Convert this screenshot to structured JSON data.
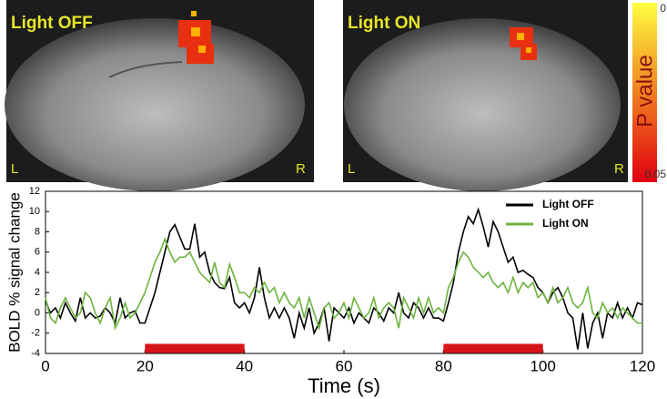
{
  "panels": [
    {
      "title": "Light OFF",
      "left": "L",
      "right": "R"
    },
    {
      "title": "Light ON",
      "left": "L",
      "right": "R"
    }
  ],
  "colorbar": {
    "label": "P value",
    "ticks": [
      0,
      0.05
    ]
  },
  "chart_data": {
    "type": "line",
    "xlabel": "Time (s)",
    "ylabel": "BOLD % signal change",
    "x": [
      0,
      1,
      2,
      3,
      4,
      5,
      6,
      7,
      8,
      9,
      10,
      11,
      12,
      13,
      14,
      15,
      16,
      17,
      18,
      19,
      20,
      21,
      22,
      23,
      24,
      25,
      26,
      27,
      28,
      29,
      30,
      31,
      32,
      33,
      34,
      35,
      36,
      37,
      38,
      39,
      40,
      41,
      42,
      43,
      44,
      45,
      46,
      47,
      48,
      49,
      50,
      51,
      52,
      53,
      54,
      55,
      56,
      57,
      58,
      59,
      60,
      61,
      62,
      63,
      64,
      65,
      66,
      67,
      68,
      69,
      70,
      71,
      72,
      73,
      74,
      75,
      76,
      77,
      78,
      79,
      80,
      81,
      82,
      83,
      84,
      85,
      86,
      87,
      88,
      89,
      90,
      91,
      92,
      93,
      94,
      95,
      96,
      97,
      98,
      99,
      100,
      101,
      102,
      103,
      104,
      105,
      106,
      107,
      108,
      109,
      110,
      111,
      112,
      113,
      114,
      115,
      116,
      117,
      118,
      119,
      120
    ],
    "series": [
      {
        "name": "Light OFF",
        "color": "#000000",
        "values": [
          1.2,
          0,
          0.5,
          -0.5,
          1,
          0,
          -0.8,
          1.5,
          -0.5,
          0,
          -0.5,
          -0.3,
          0.5,
          0,
          -1,
          1.5,
          -0.5,
          0,
          0.2,
          -1,
          -1,
          0.5,
          2,
          4,
          6,
          8,
          8.7,
          7.5,
          6.3,
          6.3,
          8.8,
          5.5,
          6,
          4,
          3,
          2.5,
          2.4,
          3.5,
          1,
          0.5,
          1,
          0,
          1.5,
          4.5,
          1.5,
          -0.5,
          0.5,
          -0.5,
          0.5,
          -0.5,
          -2.5,
          0,
          -1.5,
          0.5,
          -2,
          -1,
          0.5,
          -2.8,
          0.5,
          0,
          -0.5,
          0.5,
          -1,
          0,
          -0.5,
          -1,
          0.5,
          0,
          -0.8,
          0.5,
          0,
          2,
          0,
          -0.5,
          1,
          0.5,
          -0.5,
          0.5,
          -0.5,
          -0.5,
          -0.8,
          1,
          3,
          6,
          8,
          9.5,
          8.8,
          10.2,
          8.5,
          6.5,
          9,
          8,
          6.5,
          5,
          5.5,
          4,
          4.2,
          3.8,
          3.5,
          2.5,
          2,
          1,
          2,
          2.5,
          1.5,
          0,
          -0.5,
          -3.6,
          0,
          -3.5,
          -1,
          0,
          -2.5,
          0,
          -0.5,
          1,
          -0.5,
          0.5,
          -0.5,
          1,
          0.8
        ]
      },
      {
        "name": "Light ON",
        "color": "#6db33f",
        "values": [
          1.5,
          -0.5,
          -1,
          0.5,
          1.5,
          0.5,
          -0.5,
          0,
          2,
          1.5,
          0,
          -1,
          0.5,
          1.5,
          -1.5,
          -0.5,
          1,
          -0.5,
          0,
          1,
          2,
          3.5,
          5,
          6,
          7.3,
          6,
          5,
          5.5,
          5.5,
          6,
          5,
          4,
          3.5,
          3,
          5,
          3,
          2.5,
          4.8,
          3.5,
          2,
          2,
          1.5,
          2.5,
          2,
          3,
          2,
          2.5,
          1,
          2,
          1,
          0.5,
          1.5,
          -0.5,
          1.5,
          0,
          -1.5,
          0.5,
          1,
          -0.5,
          0,
          1,
          -0.5,
          1.5,
          0.5,
          -0.5,
          0,
          1.5,
          -0.5,
          0.5,
          1,
          0.5,
          -1.5,
          1.5,
          0.5,
          -0.5,
          1.5,
          0,
          1.5,
          0,
          0.5,
          0,
          2.5,
          3.5,
          5,
          6,
          5.5,
          4.5,
          4,
          3.5,
          4,
          3,
          2.5,
          3,
          2,
          3.5,
          2,
          3,
          2.5,
          3,
          1.5,
          2,
          1,
          2.5,
          1,
          1.5,
          2.5,
          1,
          0.5,
          1,
          2.5,
          0,
          -0.5,
          1,
          0,
          0.5,
          -0.5,
          0.5,
          0,
          -0.5,
          -1,
          -1
        ]
      }
    ],
    "stimulus": {
      "color": "#d7141a",
      "level": -3.5,
      "intervals": [
        [
          20,
          40
        ],
        [
          80,
          100
        ]
      ]
    },
    "xlim": [
      0,
      120
    ],
    "xticks": [
      0,
      20,
      40,
      60,
      80,
      100,
      120
    ],
    "ylim": [
      -4,
      12
    ],
    "yticks": [
      -4,
      -2,
      0,
      2,
      4,
      6,
      8,
      10,
      12
    ],
    "legend": "upper right"
  }
}
